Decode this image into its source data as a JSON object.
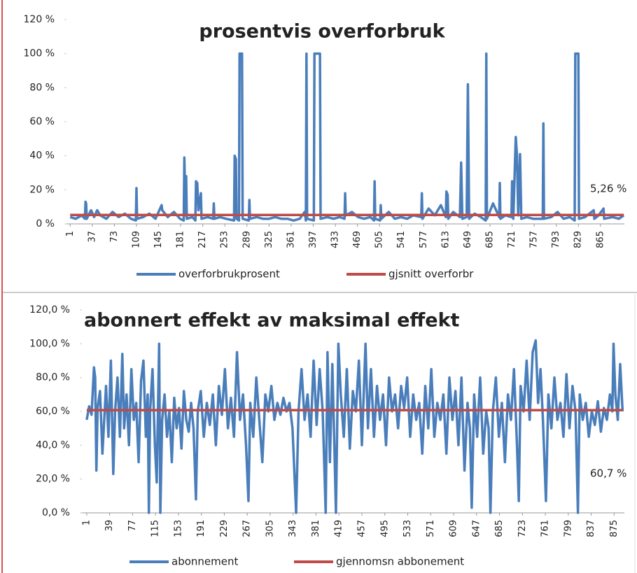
{
  "chart_data": [
    {
      "type": "line",
      "title": "prosentvis overforbruk",
      "xlim": [
        -5,
        904
      ],
      "xticks": [
        1,
        37,
        73,
        109,
        145,
        181,
        217,
        253,
        289,
        325,
        361,
        397,
        433,
        469,
        505,
        541,
        577,
        613,
        649,
        685,
        721,
        757,
        793,
        829,
        865
      ],
      "ylim": [
        0,
        120
      ],
      "yticks": [
        {
          "value": 0,
          "label": "0 %"
        },
        {
          "value": 20,
          "label": "20 %"
        },
        {
          "value": 40,
          "label": "40 %"
        },
        {
          "value": 60,
          "label": "60 %"
        },
        {
          "value": 80,
          "label": "80 %"
        },
        {
          "value": 100,
          "label": "100 %"
        },
        {
          "value": 120,
          "label": "120 %"
        }
      ],
      "grid": false,
      "legend": "bottom",
      "series": [
        {
          "name": "overforbrukprosent",
          "color": "#4a7ebb",
          "x": [
            1,
            10,
            20,
            25,
            26,
            27,
            28,
            35,
            40,
            45,
            50,
            60,
            70,
            80,
            90,
            100,
            108,
            109,
            110,
            120,
            130,
            140,
            150,
            151,
            160,
            170,
            180,
            186,
            187,
            189,
            190,
            191,
            200,
            205,
            206,
            208,
            210,
            214,
            215,
            225,
            234,
            235,
            236,
            245,
            255,
            268,
            269,
            271,
            272,
            276,
            277,
            281,
            282,
            292,
            293,
            294,
            305,
            315,
            325,
            335,
            345,
            355,
            365,
            375,
            383,
            385,
            386,
            387,
            398,
            399,
            408,
            409,
            420,
            430,
            440,
            448,
            449,
            450,
            460,
            470,
            480,
            490,
            496,
            497,
            498,
            506,
            507,
            508,
            520,
            530,
            540,
            550,
            560,
            573,
            574,
            575,
            585,
            595,
            605,
            613,
            614,
            616,
            617,
            625,
            636,
            638,
            640,
            647,
            649,
            651,
            660,
            670,
            678,
            679,
            680,
            690,
            700,
            701,
            702,
            710,
            720,
            721,
            723,
            727,
            729,
            731,
            734,
            736,
            745,
            755,
            771,
            772,
            773,
            785,
            795,
            805,
            815,
            823,
            824,
            829,
            830,
            840,
            854,
            855,
            862,
            870,
            871,
            885,
            895,
            903
          ],
          "values": [
            4,
            3,
            5,
            3,
            13,
            12,
            3,
            8,
            4,
            8,
            5,
            3,
            7,
            4,
            6,
            3,
            2,
            21,
            3,
            4,
            6,
            3,
            11,
            8,
            4,
            7,
            3,
            2,
            39,
            5,
            28,
            3,
            4,
            2,
            25,
            24,
            8,
            18,
            3,
            4,
            3,
            12,
            3,
            4,
            3,
            2,
            40,
            38,
            3,
            2,
            100,
            100,
            3,
            2,
            14,
            3,
            4,
            3,
            3,
            4,
            3,
            3,
            2,
            3,
            7,
            2,
            100,
            3,
            2,
            100,
            100,
            3,
            4,
            3,
            4,
            3,
            18,
            5,
            7,
            4,
            3,
            4,
            2,
            25,
            3,
            2,
            11,
            3,
            7,
            3,
            4,
            3,
            5,
            4,
            18,
            3,
            9,
            5,
            11,
            4,
            19,
            17,
            3,
            7,
            4,
            36,
            3,
            4,
            82,
            3,
            6,
            4,
            2,
            100,
            3,
            12,
            4,
            24,
            3,
            5,
            4,
            25,
            3,
            51,
            40,
            5,
            41,
            3,
            4,
            3,
            3,
            59,
            3,
            4,
            7,
            3,
            4,
            2,
            100,
            100,
            3,
            4,
            8,
            3,
            5,
            9,
            3,
            4,
            3,
            5
          ]
        },
        {
          "name": "gjsnitt overforbr",
          "color": "#be4b48",
          "x": [
            1,
            903
          ],
          "values": [
            5.26,
            5.26
          ]
        }
      ],
      "annotations": [
        {
          "text": "5,26 %",
          "value": 5.26
        }
      ]
    },
    {
      "type": "line",
      "title": "abonnert effekt av maksimal effekt",
      "xlim": [
        -7,
        892
      ],
      "xticks": [
        1,
        39,
        77,
        115,
        153,
        191,
        229,
        267,
        305,
        343,
        381,
        419,
        457,
        495,
        533,
        571,
        609,
        647,
        685,
        723,
        761,
        799,
        837,
        875
      ],
      "ylim": [
        0,
        120
      ],
      "yticks": [
        {
          "value": 0,
          "label": "0,0 %"
        },
        {
          "value": 20,
          "label": "20,0 %"
        },
        {
          "value": 40,
          "label": "40,0 %"
        },
        {
          "value": 60,
          "label": "60,0 %"
        },
        {
          "value": 80,
          "label": "80,0 %"
        },
        {
          "value": 100,
          "label": "100,0 %"
        },
        {
          "value": 120,
          "label": "120,0 %"
        }
      ],
      "grid": false,
      "legend": "bottom",
      "series": [
        {
          "name": "abonnement",
          "color": "#4a7ebb",
          "x": [
            1,
            5,
            9,
            13,
            15,
            17,
            19,
            23,
            27,
            30,
            33,
            37,
            41,
            45,
            48,
            52,
            56,
            60,
            63,
            67,
            71,
            75,
            79,
            83,
            87,
            91,
            95,
            99,
            102,
            104,
            106,
            110,
            114,
            117,
            121,
            123,
            126,
            130,
            134,
            138,
            142,
            146,
            150,
            154,
            158,
            162,
            166,
            170,
            174,
            178,
            182,
            185,
            190,
            195,
            200,
            205,
            210,
            215,
            220,
            225,
            230,
            235,
            240,
            245,
            250,
            255,
            260,
            265,
            269,
            272,
            277,
            282,
            287,
            292,
            297,
            302,
            307,
            312,
            317,
            322,
            327,
            332,
            337,
            342,
            348,
            352,
            357,
            362,
            367,
            372,
            377,
            382,
            387,
            392,
            397,
            400,
            404,
            408,
            411,
            414,
            418,
            422,
            427,
            432,
            437,
            442,
            447,
            452,
            457,
            463,
            467,
            472,
            477,
            482,
            487,
            492,
            497,
            502,
            507,
            512,
            517,
            522,
            527,
            532,
            537,
            542,
            547,
            552,
            557,
            562,
            567,
            572,
            577,
            582,
            587,
            592,
            597,
            602,
            607,
            612,
            617,
            622,
            627,
            632,
            636,
            639,
            643,
            648,
            653,
            658,
            663,
            667,
            670,
            674,
            679,
            684,
            689,
            694,
            699,
            704,
            709,
            714,
            717,
            720,
            725,
            730,
            735,
            740,
            745,
            749,
            753,
            757,
            762,
            766,
            771,
            776,
            781,
            786,
            791,
            796,
            801,
            806,
            811,
            815,
            818,
            823,
            828,
            833,
            838,
            843,
            848,
            853,
            858,
            863,
            868,
            872,
            874,
            877,
            881,
            885,
            889
          ],
          "values": [
            55,
            63,
            58,
            86,
            80,
            25,
            62,
            72,
            35,
            55,
            75,
            45,
            90,
            23,
            60,
            80,
            45,
            94,
            50,
            70,
            40,
            85,
            55,
            65,
            30,
            78,
            90,
            45,
            70,
            0,
            60,
            85,
            40,
            18,
            100,
            0,
            55,
            70,
            45,
            60,
            30,
            68,
            50,
            62,
            38,
            72,
            55,
            48,
            65,
            50,
            8,
            60,
            72,
            45,
            65,
            52,
            70,
            40,
            75,
            58,
            85,
            50,
            68,
            45,
            95,
            55,
            70,
            40,
            7,
            65,
            45,
            80,
            55,
            30,
            70,
            60,
            75,
            55,
            65,
            58,
            68,
            60,
            65,
            50,
            0,
            60,
            85,
            55,
            70,
            45,
            90,
            52,
            85,
            60,
            0,
            95,
            30,
            88,
            45,
            0,
            100,
            70,
            45,
            85,
            38,
            72,
            60,
            90,
            40,
            100,
            50,
            85,
            45,
            75,
            55,
            70,
            40,
            80,
            60,
            70,
            50,
            75,
            62,
            80,
            45,
            70,
            55,
            65,
            35,
            75,
            50,
            85,
            45,
            65,
            55,
            70,
            35,
            80,
            55,
            72,
            40,
            80,
            25,
            65,
            50,
            3,
            70,
            45,
            80,
            35,
            60,
            50,
            0,
            60,
            80,
            45,
            65,
            30,
            70,
            55,
            85,
            40,
            7,
            75,
            60,
            90,
            55,
            95,
            102,
            65,
            85,
            55,
            7,
            70,
            50,
            80,
            55,
            65,
            45,
            82,
            50,
            75,
            60,
            0,
            70,
            55,
            65,
            45,
            60,
            52,
            66,
            48,
            62,
            55,
            70,
            60,
            100,
            70,
            55,
            88,
            60
          ]
        },
        {
          "name": "gjennomsn abbonement",
          "color": "#be4b48",
          "x": [
            1,
            889
          ],
          "values": [
            60.7,
            60.7
          ]
        }
      ],
      "annotations": [
        {
          "text": "60,7 %",
          "value": 60.7
        }
      ]
    }
  ]
}
